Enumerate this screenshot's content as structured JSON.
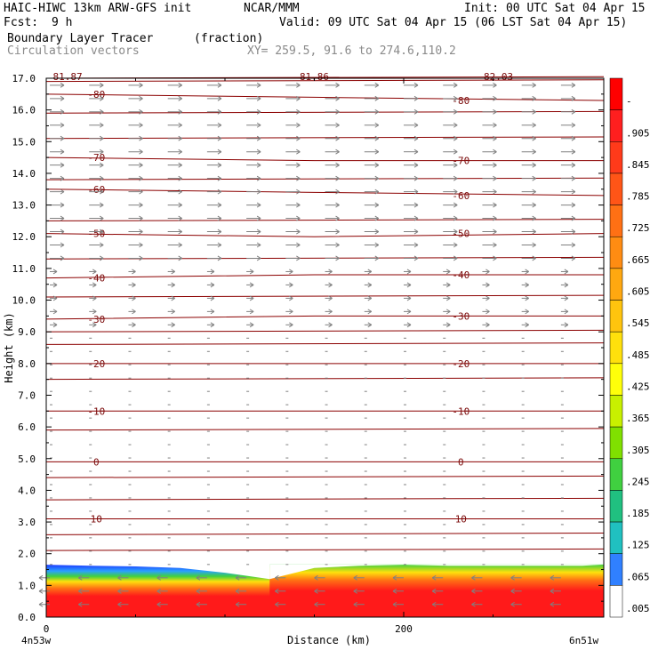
{
  "header": {
    "model": "HAIC-HIWC 13km ARW-GFS init",
    "org": "NCAR/MMM",
    "init": "Init: 00 UTC Sat 04 Apr 15",
    "fcst_label": "Fcst:",
    "fcst_value": "9 h",
    "valid": "Valid: 09 UTC Sat 04 Apr 15 (06 LST Sat 04 Apr 15)",
    "field": "Boundary Layer Tracer",
    "field_units": "(fraction)",
    "vectors": "Circulation vectors",
    "xy": "XY= 259.5, 91.6 to 274.6,110.2"
  },
  "colors": {
    "contour": "#8b0000",
    "vector": "#808080",
    "tracer_high": "#ff1a1a",
    "tracer_edge_blue": "#1f3cff"
  },
  "chart_data": {
    "type": "heatmap",
    "xlabel": "Distance (km)",
    "ylabel": "Height (km)",
    "xlim": [
      0,
      300
    ],
    "ylim": [
      0,
      17
    ],
    "x_ticks": [
      0,
      200
    ],
    "x_tick_labels": [
      "0",
      "200"
    ],
    "x_end_labels": [
      "4n53w",
      "6n51w"
    ],
    "y_ticks": [
      0,
      1,
      2,
      3,
      4,
      5,
      6,
      7,
      8,
      9,
      10,
      11,
      12,
      13,
      14,
      15,
      16,
      17
    ],
    "y_tick_labels": [
      "0.0",
      "1.0",
      "2.0",
      "3.0",
      "4.0",
      "5.0",
      "6.0",
      "7.0",
      "8.0",
      "9.0",
      "10.0",
      "11.0",
      "12.0",
      "13.0",
      "14.0",
      "15.0",
      "16.0",
      "17.0"
    ],
    "colorbar": {
      "levels": [
        "-",
        ".905",
        ".845",
        ".785",
        ".725",
        ".665",
        ".605",
        ".545",
        ".485",
        ".425",
        ".365",
        ".305",
        ".245",
        ".185",
        ".125",
        ".065",
        ".005"
      ],
      "colors": [
        "#ff0000",
        "#ff1f1f",
        "#ff3a1a",
        "#ff5517",
        "#ff7014",
        "#ff8c12",
        "#ffa810",
        "#ffc40e",
        "#ffe00c",
        "#ffff0a",
        "#c8f000",
        "#80e000",
        "#40d040",
        "#20c080",
        "#20c0c0",
        "#3080ff",
        "#ffffff"
      ]
    },
    "temperature_contours": [
      {
        "value": -80,
        "label": "-80",
        "y": [
          16.5,
          16.4,
          16.3
        ]
      },
      {
        "value": -70,
        "label": "-70",
        "y": [
          14.5,
          14.4,
          14.4
        ]
      },
      {
        "value": -60,
        "label": "-60",
        "y": [
          13.5,
          13.4,
          13.3
        ]
      },
      {
        "value": -50,
        "label": "-50",
        "y": [
          12.1,
          12.0,
          12.1
        ]
      },
      {
        "value": -40,
        "label": "-40",
        "y": [
          10.7,
          10.8,
          10.8
        ]
      },
      {
        "value": -30,
        "label": "-30",
        "y": [
          9.4,
          9.5,
          9.5
        ]
      },
      {
        "value": -20,
        "label": "-20",
        "y": [
          8.0,
          8.0,
          8.0
        ]
      },
      {
        "value": -10,
        "label": "-10",
        "y": [
          6.5,
          6.5,
          6.5
        ]
      },
      {
        "value": 0,
        "label": "0",
        "y": [
          4.9,
          4.9,
          4.9
        ]
      },
      {
        "value": 10,
        "label": "10",
        "y": [
          3.1,
          3.1,
          3.1
        ]
      }
    ],
    "extra_contours_y": [
      17.0,
      16.9,
      15.9,
      15.1,
      13.8,
      12.5,
      11.3,
      10.1,
      9.0,
      8.6,
      7.5,
      5.9,
      4.4,
      3.7,
      2.6,
      2.1
    ],
    "top_partial_labels": [
      "81.87",
      "81.86",
      "82.03"
    ],
    "boundary_layer": {
      "x": [
        0,
        25,
        50,
        75,
        100,
        125,
        150,
        175,
        200,
        225,
        250,
        275,
        300
      ],
      "top_km": [
        1.65,
        1.62,
        1.6,
        1.55,
        1.4,
        1.2,
        1.55,
        1.62,
        1.65,
        1.62,
        1.62,
        1.62,
        1.62
      ]
    }
  }
}
